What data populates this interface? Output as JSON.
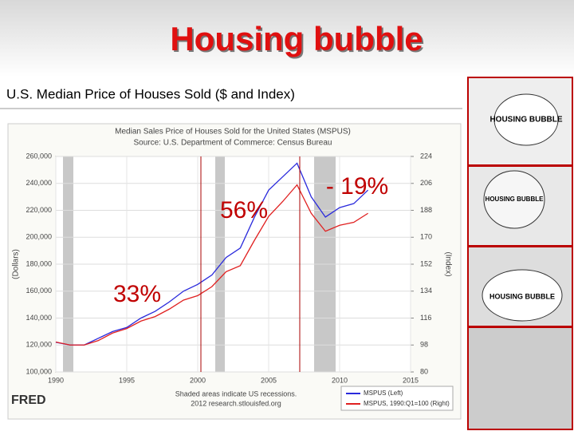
{
  "slide": {
    "title": "Housing bubble",
    "subtitle": "U.S. Median Price of Houses Sold ($ and Index)",
    "images": [
      "HOUSING BUBBLE",
      "HOUSING BUBBLE",
      "HOUSING BUBBLE"
    ]
  },
  "chart_data": {
    "type": "line",
    "title": "Median Sales Price of Houses Sold for the United States (MSPUS)",
    "subtitle": "Source: U.S. Department of Commerce: Census Bureau",
    "y_label": "(Dollars)",
    "y2_label": "(Index)",
    "footnote": "Shaded areas indicate US recessions.",
    "credit": "2012 research.stlouisfed.org",
    "brand": "FRED",
    "annotations": [
      "33%",
      "56%",
      "- 19%"
    ],
    "x": [
      1990,
      1991,
      1992,
      1993,
      1994,
      1995,
      1996,
      1997,
      1998,
      1999,
      2000,
      2001,
      2002,
      2003,
      2004,
      2005,
      2006,
      2007,
      2008,
      2009,
      2010,
      2011,
      2012
    ],
    "series": [
      {
        "name": "MSPUS (Left)",
        "color": "#2a2adc",
        "values": [
          122000,
          120000,
          120000,
          125000,
          130000,
          133000,
          140000,
          145000,
          152000,
          160000,
          165000,
          172000,
          185000,
          192000,
          215000,
          235000,
          245000,
          255000,
          230000,
          215000,
          222000,
          225000,
          235000
        ]
      },
      {
        "name": "MSPUS, 1990:Q1=100 (Right)",
        "color": "#e02020",
        "axis": "y2",
        "values": [
          100,
          98,
          98,
          101,
          106,
          109,
          114,
          117,
          122,
          128,
          131,
          137,
          147,
          151,
          168,
          184,
          194,
          205,
          186,
          174,
          178,
          180,
          186
        ]
      }
    ],
    "xlim": [
      1990,
      2015
    ],
    "xticks": [
      1990,
      1995,
      2000,
      2005,
      2010,
      2015
    ],
    "ylim": [
      100000,
      260000
    ],
    "yticks": [
      {
        "value": 100000,
        "label": "100,000"
      },
      {
        "value": 120000,
        "label": "120,000"
      },
      {
        "value": 140000,
        "label": "140,000"
      },
      {
        "value": 160000,
        "label": "160,000"
      },
      {
        "value": 180000,
        "label": "180,000"
      },
      {
        "value": 200000,
        "label": "200,000"
      },
      {
        "value": 220000,
        "label": "220,000"
      },
      {
        "value": 240000,
        "label": "240,000"
      },
      {
        "value": 260000,
        "label": "260,000"
      }
    ],
    "y2lim": [
      80,
      224
    ],
    "y2ticks": [
      80,
      98,
      116,
      134,
      152,
      170,
      188,
      206,
      224
    ],
    "grid": true
  }
}
